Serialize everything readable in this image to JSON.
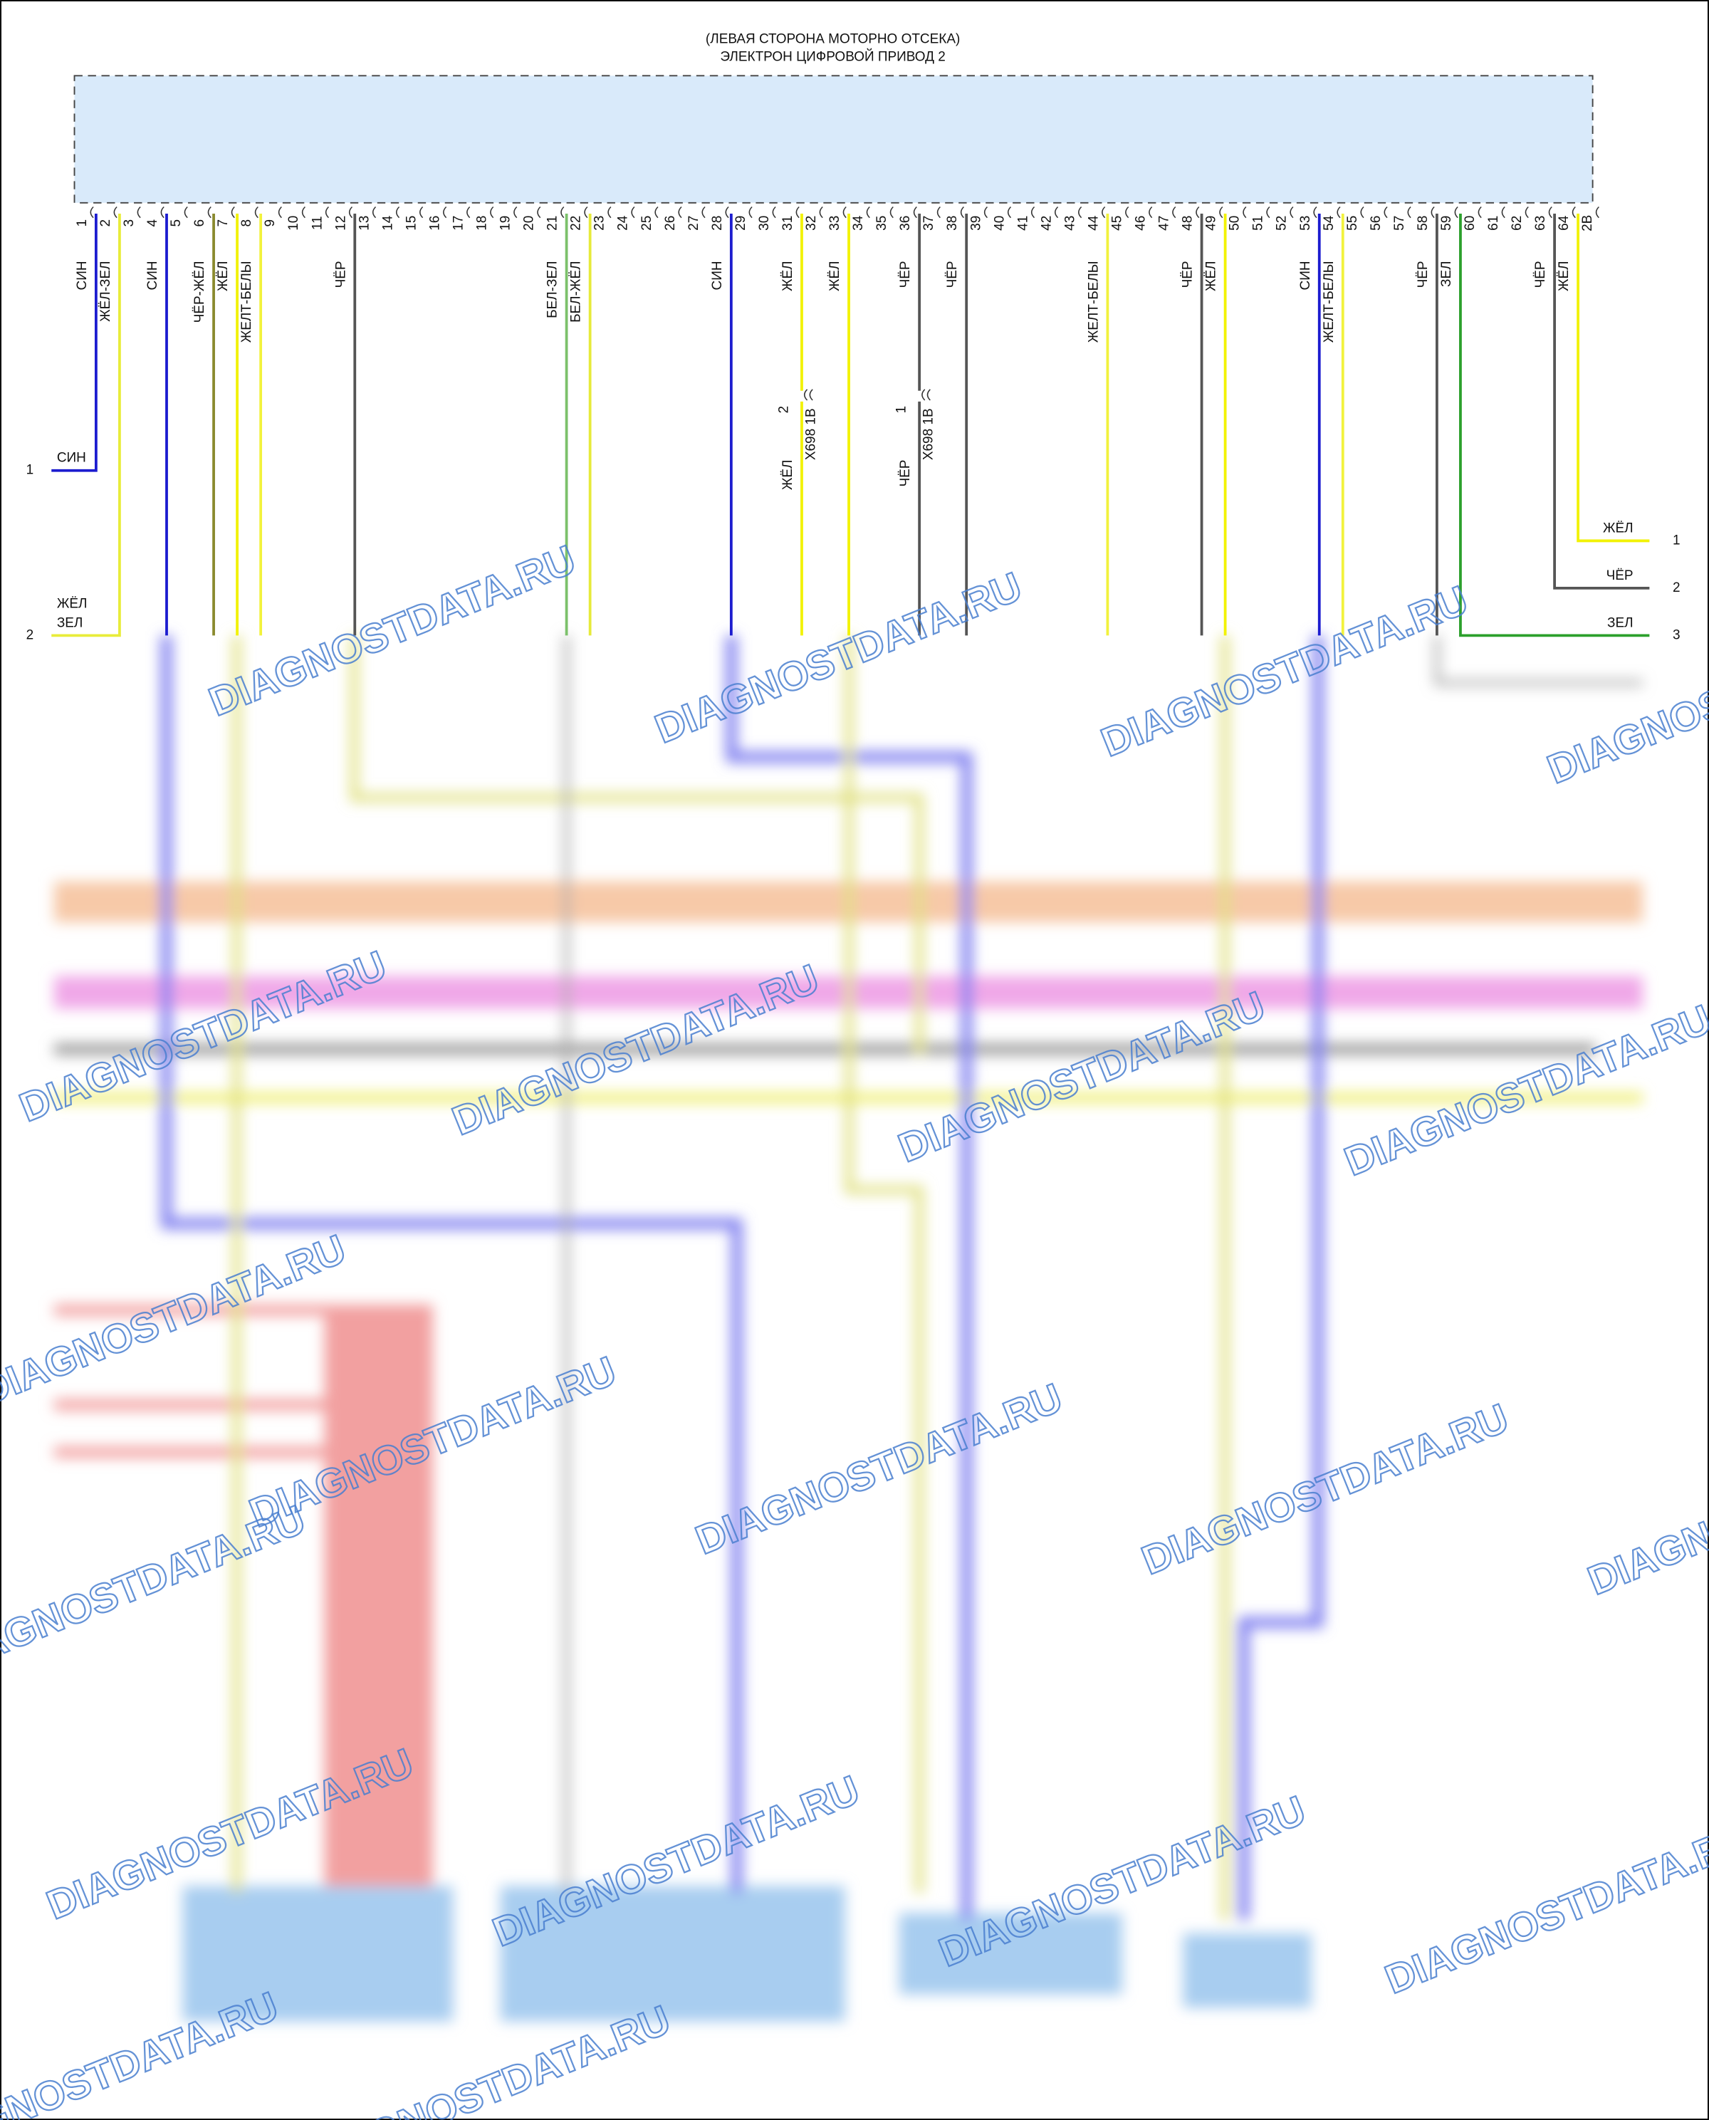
{
  "header": {
    "line1": "(ЛЕВАЯ СТОРОНА МОТОРНО ОТСЕКА)",
    "line2": "ЭЛЕКТРОН ЦИФРОВОЙ ПРИВОД 2"
  },
  "pins": [
    {
      "label": "1",
      "wire": {
        "label": "СИН",
        "color": "#1c1ccf"
      }
    },
    {
      "label": "2",
      "wire": {
        "label": "ЖЁЛ-ЗЕЛ",
        "color": "#e8ec3a"
      }
    },
    {
      "label": "3"
    },
    {
      "label": "4",
      "wire": {
        "label": "СИН",
        "color": "#1c1ccf"
      }
    },
    {
      "label": "5"
    },
    {
      "label": "6",
      "wire": {
        "label": "ЧЁР-ЖЁЛ",
        "color": "#8a8a2e"
      }
    },
    {
      "label": "7",
      "wire": {
        "label": "ЖЁЛ",
        "color": "#f2f200"
      }
    },
    {
      "label": "8",
      "wire": {
        "label": "ЖЕЛТ-БЕЛЫ",
        "color": "#f2f23c"
      }
    },
    {
      "label": "9"
    },
    {
      "label": "10"
    },
    {
      "label": "11"
    },
    {
      "label": "12",
      "wire": {
        "label": "ЧЁР",
        "color": "#555555"
      }
    },
    {
      "label": "13"
    },
    {
      "label": "14"
    },
    {
      "label": "15"
    },
    {
      "label": "16"
    },
    {
      "label": "17"
    },
    {
      "label": "18"
    },
    {
      "label": "19"
    },
    {
      "label": "20"
    },
    {
      "label": "21",
      "wire": {
        "label": "БЕЛ-ЗЕЛ",
        "color": "#7cc16b"
      }
    },
    {
      "label": "22",
      "wire": {
        "label": "БЕЛ-ЖЁЛ",
        "color": "#e6ea3a"
      }
    },
    {
      "label": "23"
    },
    {
      "label": "24"
    },
    {
      "label": "25"
    },
    {
      "label": "26"
    },
    {
      "label": "27"
    },
    {
      "label": "28",
      "wire": {
        "label": "СИН",
        "color": "#1c1ccf"
      }
    },
    {
      "label": "29"
    },
    {
      "label": "30"
    },
    {
      "label": "31",
      "wire": {
        "label": "ЖЁЛ",
        "color": "#f2f200",
        "connector": "X698 1В",
        "connector_pin": "2",
        "lower_label": "ЖЁЛ"
      }
    },
    {
      "label": "32"
    },
    {
      "label": "33",
      "wire": {
        "label": "ЖЁЛ",
        "color": "#f2f200"
      }
    },
    {
      "label": "34"
    },
    {
      "label": "35"
    },
    {
      "label": "36",
      "wire": {
        "label": "ЧЁР",
        "color": "#555555",
        "connector": "X698 1В",
        "connector_pin": "1",
        "lower_label": "ЧЁР"
      }
    },
    {
      "label": "37"
    },
    {
      "label": "38",
      "wire": {
        "label": "ЧЁР",
        "color": "#555555"
      }
    },
    {
      "label": "39"
    },
    {
      "label": "40"
    },
    {
      "label": "41"
    },
    {
      "label": "42"
    },
    {
      "label": "43"
    },
    {
      "label": "44",
      "wire": {
        "label": "ЖЕЛТ-БЕЛЫ",
        "color": "#f2f23c"
      }
    },
    {
      "label": "45"
    },
    {
      "label": "46"
    },
    {
      "label": "47"
    },
    {
      "label": "48",
      "wire": {
        "label": "ЧЁР",
        "color": "#555555"
      }
    },
    {
      "label": "49",
      "wire": {
        "label": "ЖЁЛ",
        "color": "#f2f200"
      }
    },
    {
      "label": "50"
    },
    {
      "label": "51"
    },
    {
      "label": "52"
    },
    {
      "label": "53",
      "wire": {
        "label": "СИН",
        "color": "#1c1ccf"
      }
    },
    {
      "label": "54",
      "wire": {
        "label": "ЖЕЛТ-БЕЛЫ",
        "color": "#f2f23c"
      }
    },
    {
      "label": "55"
    },
    {
      "label": "56"
    },
    {
      "label": "57"
    },
    {
      "label": "58",
      "wire": {
        "label": "ЧЁР",
        "color": "#555555"
      }
    },
    {
      "label": "59",
      "wire": {
        "label": "ЗЕЛ",
        "color": "#2ca02c"
      }
    },
    {
      "label": "60"
    },
    {
      "label": "61"
    },
    {
      "label": "62"
    },
    {
      "label": "63",
      "wire": {
        "label": "ЧЁР",
        "color": "#555555"
      }
    },
    {
      "label": "64",
      "wire": {
        "label": "ЖЁЛ",
        "color": "#f2f200"
      }
    },
    {
      "label": "2В"
    }
  ],
  "left_terminals": [
    {
      "number": "1",
      "labels": [
        "СИН"
      ]
    },
    {
      "number": "2",
      "labels": [
        "ЖЁЛ",
        "ЗЕЛ"
      ]
    }
  ],
  "right_terminals": [
    {
      "number": "1",
      "labels": [
        "ЖЁЛ"
      ]
    },
    {
      "number": "2",
      "labels": [
        "ЧЁР"
      ]
    },
    {
      "number": "3",
      "labels": [
        "ЗЕЛ"
      ]
    }
  ],
  "watermark": "DIAGNOSTDATA.RU"
}
